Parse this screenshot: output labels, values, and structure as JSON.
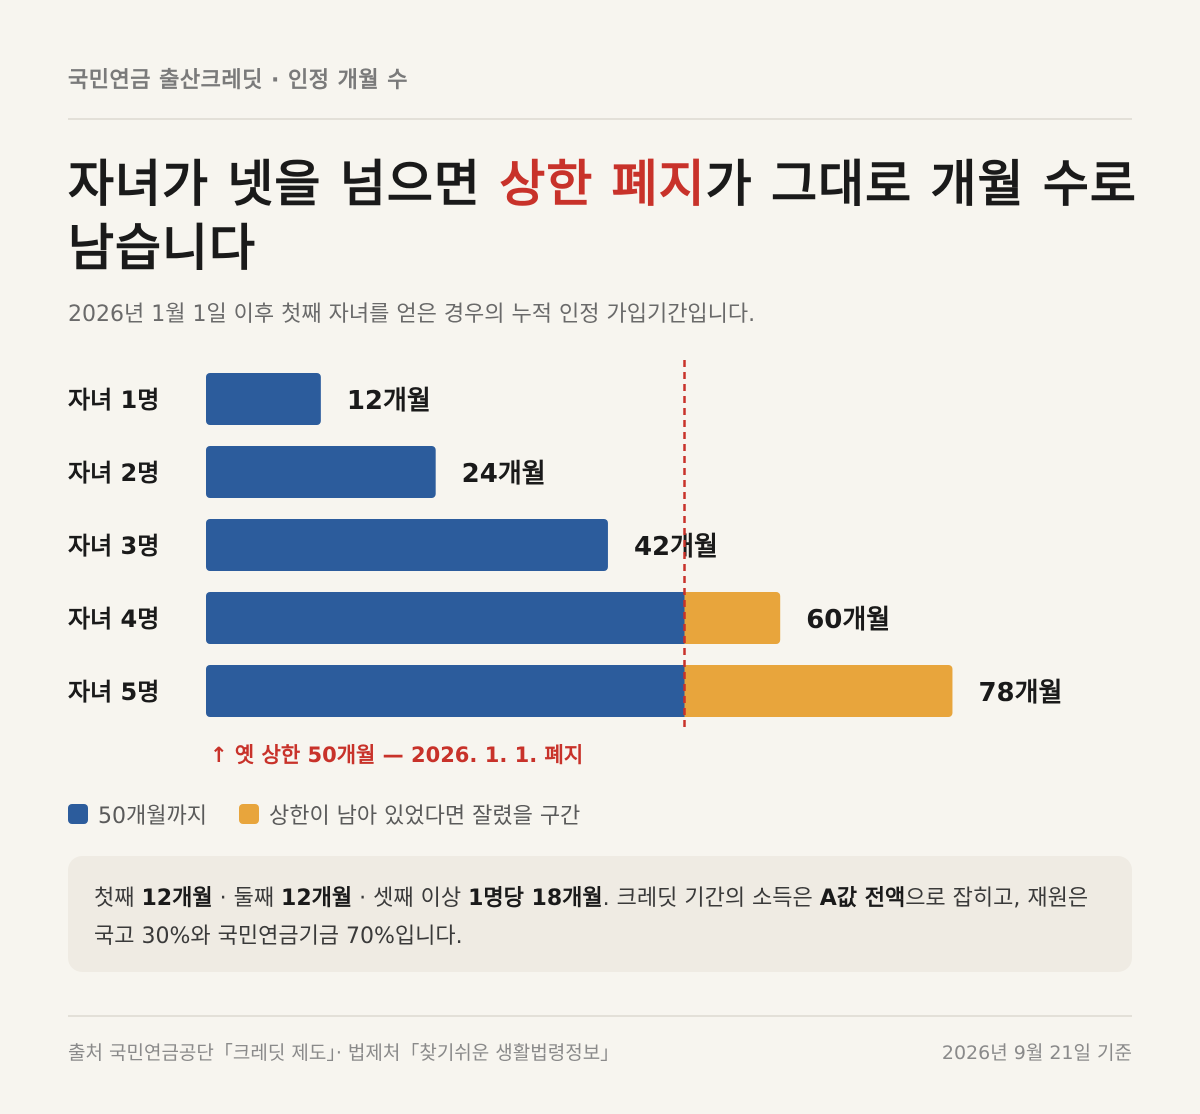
{
  "kicker": "국민연금 출산크레딧 · 인정 개월 수",
  "headline": {
    "part1": "자녀가 넷을 넘으면 ",
    "highlight": "상한 폐지",
    "part2": "가 그대로 개월 수로 남습니다"
  },
  "subtitle": "2026년 1월 1일 이후 첫째 자녀를 얻은 경우의 누적 인정 가입기간입니다.",
  "colors": {
    "blue": "#2c5c9c",
    "orange": "#e8a53c",
    "red": "#c8322a"
  },
  "chart_data": {
    "type": "bar",
    "orientation": "horizontal",
    "stacked": true,
    "categories": [
      "자녀 1명",
      "자녀 2명",
      "자녀 3명",
      "자녀 4명",
      "자녀 5명"
    ],
    "totals": [
      12,
      24,
      42,
      60,
      78
    ],
    "value_labels": [
      "12개월",
      "24개월",
      "42개월",
      "60개월",
      "78개월"
    ],
    "series": [
      {
        "name": "50개월까지",
        "values": [
          12,
          24,
          42,
          50,
          50
        ],
        "color": "#2c5c9c"
      },
      {
        "name": "상한이 남아 있었다면 잘렸을 구간",
        "values": [
          0,
          0,
          0,
          10,
          28
        ],
        "color": "#e8a53c"
      }
    ],
    "reference_line": {
      "value": 50,
      "label": "↑ 옛 상한 50개월 — 2026. 1. 1. 폐지"
    },
    "xlim": [
      0,
      78
    ]
  },
  "note": {
    "t1": "첫째 ",
    "b1": "12개월",
    "t2": " · 둘째 ",
    "b2": "12개월",
    "t3": " · 셋째 이상 ",
    "b3": "1명당 18개월",
    "t4": ". 크레딧 기간의 소득은 ",
    "b4": "A값 전액",
    "t5": "으로 잡히고, 재원은 국고 30%와 국민연금기금 70%입니다."
  },
  "footer": {
    "source": "출처 국민연금공단「크레딧 제도」· 법제처「찾기쉬운 생활법령정보」",
    "date": "2026년 9월 21일 기준"
  }
}
